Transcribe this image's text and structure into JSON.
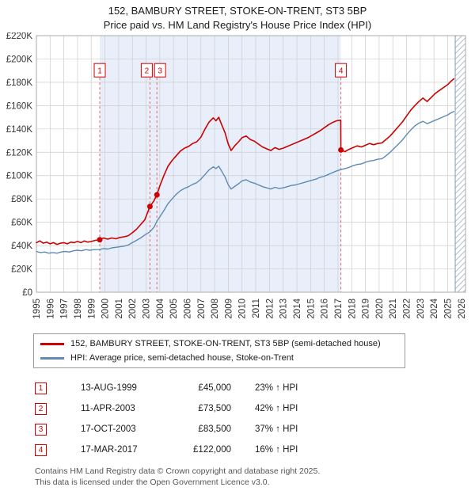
{
  "header": {
    "title": "152, BAMBURY STREET, STOKE-ON-TRENT, ST3 5BP",
    "subtitle": "Price paid vs. HM Land Registry's House Price Index (HPI)"
  },
  "chart_data": {
    "type": "line",
    "title": "152, BAMBURY STREET, STOKE-ON-TRENT, ST3 5BP — Price paid vs. HPI",
    "x_range": [
      1995,
      2026.3
    ],
    "y_range": [
      0,
      220000
    ],
    "x_ticks": [
      1995,
      1996,
      1997,
      1998,
      1999,
      2000,
      2001,
      2002,
      2003,
      2004,
      2005,
      2006,
      2007,
      2008,
      2009,
      2010,
      2011,
      2012,
      2013,
      2014,
      2015,
      2016,
      2017,
      2018,
      2019,
      2020,
      2021,
      2022,
      2023,
      2024,
      2025,
      2026
    ],
    "y_ticks": [
      0,
      20000,
      40000,
      60000,
      80000,
      100000,
      120000,
      140000,
      160000,
      180000,
      200000,
      220000
    ],
    "y_tick_labels": [
      "£0",
      "£20K",
      "£40K",
      "£60K",
      "£80K",
      "£100K",
      "£120K",
      "£140K",
      "£160K",
      "£180K",
      "£200K",
      "£220K"
    ],
    "grid": true,
    "legend_position": "below",
    "marker_y": 190000,
    "ownership_band": {
      "start": 1999.62,
      "end": 2017.21
    },
    "future_band": {
      "start": 2025.55,
      "end": 2026.3
    },
    "colors": {
      "accent": "#cc0000",
      "hpi": "#5e8ab4",
      "band": "#e9effa",
      "grid": "#cccccc",
      "dash": "#e06666",
      "hatch": "#aebdd0",
      "frame": "#aaaaaa",
      "axis_text": "#333333"
    },
    "sales": [
      {
        "label": "1",
        "x": 1999.62,
        "y": 45000,
        "label_dx": 0
      },
      {
        "label": "2",
        "x": 2003.28,
        "y": 73500,
        "label_dx": -4
      },
      {
        "label": "3",
        "x": 2003.79,
        "y": 83500,
        "label_dx": 4
      },
      {
        "label": "4",
        "x": 2017.21,
        "y": 122000,
        "label_dx": 0
      }
    ],
    "series": [
      {
        "name": "152, BAMBURY STREET, STOKE-ON-TRENT, ST3 5BP (semi-detached house)",
        "color": "#cc0000",
        "width": 1.6,
        "points": [
          [
            1995.0,
            42500
          ],
          [
            1995.25,
            44000
          ],
          [
            1995.5,
            42000
          ],
          [
            1995.75,
            43000
          ],
          [
            1996.0,
            41500
          ],
          [
            1996.25,
            42500
          ],
          [
            1996.5,
            41000
          ],
          [
            1996.75,
            42000
          ],
          [
            1997.0,
            42500
          ],
          [
            1997.25,
            41500
          ],
          [
            1997.5,
            43000
          ],
          [
            1997.75,
            42500
          ],
          [
            1998.0,
            43500
          ],
          [
            1998.25,
            42500
          ],
          [
            1998.5,
            44000
          ],
          [
            1998.75,
            43000
          ],
          [
            1999.0,
            43500
          ],
          [
            1999.3,
            44500
          ],
          [
            1999.62,
            45000
          ],
          [
            1999.9,
            46500
          ],
          [
            2000.2,
            45500
          ],
          [
            2000.5,
            46500
          ],
          [
            2000.8,
            45800
          ],
          [
            2001.1,
            47000
          ],
          [
            2001.4,
            47500
          ],
          [
            2001.7,
            48500
          ],
          [
            2002.0,
            51000
          ],
          [
            2002.3,
            54000
          ],
          [
            2002.6,
            58000
          ],
          [
            2002.9,
            62000
          ],
          [
            2003.28,
            73500
          ],
          [
            2003.55,
            78000
          ],
          [
            2003.79,
            83500
          ],
          [
            2004.0,
            91000
          ],
          [
            2004.3,
            100000
          ],
          [
            2004.6,
            108000
          ],
          [
            2004.9,
            113000
          ],
          [
            2005.2,
            117000
          ],
          [
            2005.5,
            121000
          ],
          [
            2005.8,
            123500
          ],
          [
            2006.1,
            125000
          ],
          [
            2006.4,
            127500
          ],
          [
            2006.7,
            129000
          ],
          [
            2007.0,
            133000
          ],
          [
            2007.3,
            140000
          ],
          [
            2007.6,
            146000
          ],
          [
            2007.9,
            149500
          ],
          [
            2008.1,
            147000
          ],
          [
            2008.3,
            150000
          ],
          [
            2008.5,
            144000
          ],
          [
            2008.75,
            137000
          ],
          [
            2009.0,
            127000
          ],
          [
            2009.2,
            121500
          ],
          [
            2009.5,
            126000
          ],
          [
            2009.75,
            129000
          ],
          [
            2010.0,
            132500
          ],
          [
            2010.3,
            134000
          ],
          [
            2010.6,
            131000
          ],
          [
            2010.9,
            129500
          ],
          [
            2011.2,
            127000
          ],
          [
            2011.5,
            124500
          ],
          [
            2011.8,
            123000
          ],
          [
            2012.1,
            121500
          ],
          [
            2012.4,
            124000
          ],
          [
            2012.7,
            122500
          ],
          [
            2013.0,
            123500
          ],
          [
            2013.3,
            125000
          ],
          [
            2013.6,
            126500
          ],
          [
            2013.9,
            128000
          ],
          [
            2014.2,
            129500
          ],
          [
            2014.5,
            131000
          ],
          [
            2014.8,
            132500
          ],
          [
            2015.1,
            134500
          ],
          [
            2015.4,
            136500
          ],
          [
            2015.7,
            138500
          ],
          [
            2016.0,
            141000
          ],
          [
            2016.3,
            143500
          ],
          [
            2016.6,
            145500
          ],
          [
            2016.9,
            147000
          ],
          [
            2017.2,
            147500
          ],
          [
            2017.21,
            122000
          ],
          [
            2017.5,
            120500
          ],
          [
            2017.8,
            122500
          ],
          [
            2018.1,
            124000
          ],
          [
            2018.4,
            125500
          ],
          [
            2018.7,
            124500
          ],
          [
            2019.0,
            126000
          ],
          [
            2019.3,
            127500
          ],
          [
            2019.6,
            126500
          ],
          [
            2019.9,
            127500
          ],
          [
            2020.2,
            128000
          ],
          [
            2020.5,
            131000
          ],
          [
            2020.8,
            134000
          ],
          [
            2021.1,
            138000
          ],
          [
            2021.4,
            142000
          ],
          [
            2021.7,
            146000
          ],
          [
            2022.0,
            151000
          ],
          [
            2022.3,
            156000
          ],
          [
            2022.6,
            160000
          ],
          [
            2022.9,
            163500
          ],
          [
            2023.2,
            166500
          ],
          [
            2023.5,
            163500
          ],
          [
            2023.8,
            167000
          ],
          [
            2024.1,
            170500
          ],
          [
            2024.4,
            173000
          ],
          [
            2024.7,
            175500
          ],
          [
            2025.0,
            178000
          ],
          [
            2025.2,
            180500
          ],
          [
            2025.45,
            183000
          ]
        ]
      },
      {
        "name": "HPI: Average price, semi-detached house, Stoke-on-Trent",
        "color": "#5e8ab4",
        "width": 1.4,
        "points": [
          [
            1995.0,
            35000
          ],
          [
            1995.3,
            34000
          ],
          [
            1995.6,
            34500
          ],
          [
            1995.9,
            33500
          ],
          [
            1996.2,
            34000
          ],
          [
            1996.5,
            33500
          ],
          [
            1996.8,
            34500
          ],
          [
            1997.1,
            35000
          ],
          [
            1997.4,
            34500
          ],
          [
            1997.7,
            35500
          ],
          [
            1998.0,
            36000
          ],
          [
            1998.3,
            35500
          ],
          [
            1998.6,
            36500
          ],
          [
            1998.9,
            36000
          ],
          [
            1999.2,
            36500
          ],
          [
            1999.62,
            36600
          ],
          [
            1999.9,
            37500
          ],
          [
            2000.2,
            37000
          ],
          [
            2000.5,
            38000
          ],
          [
            2000.8,
            38500
          ],
          [
            2001.1,
            39000
          ],
          [
            2001.4,
            39500
          ],
          [
            2001.7,
            40500
          ],
          [
            2002.0,
            42500
          ],
          [
            2002.3,
            44500
          ],
          [
            2002.6,
            46500
          ],
          [
            2002.9,
            49000
          ],
          [
            2003.28,
            51800
          ],
          [
            2003.6,
            56000
          ],
          [
            2003.79,
            61000
          ],
          [
            2004.0,
            64500
          ],
          [
            2004.3,
            70000
          ],
          [
            2004.6,
            76000
          ],
          [
            2004.9,
            80000
          ],
          [
            2005.2,
            84000
          ],
          [
            2005.5,
            87000
          ],
          [
            2005.8,
            89000
          ],
          [
            2006.1,
            90500
          ],
          [
            2006.4,
            92500
          ],
          [
            2006.7,
            94000
          ],
          [
            2007.0,
            97000
          ],
          [
            2007.3,
            101000
          ],
          [
            2007.6,
            105000
          ],
          [
            2007.9,
            107500
          ],
          [
            2008.1,
            106000
          ],
          [
            2008.3,
            108000
          ],
          [
            2008.5,
            104000
          ],
          [
            2008.75,
            99000
          ],
          [
            2009.0,
            92000
          ],
          [
            2009.2,
            88500
          ],
          [
            2009.5,
            91000
          ],
          [
            2009.75,
            93000
          ],
          [
            2010.0,
            95500
          ],
          [
            2010.3,
            96500
          ],
          [
            2010.6,
            94500
          ],
          [
            2010.9,
            93500
          ],
          [
            2011.2,
            92000
          ],
          [
            2011.5,
            90500
          ],
          [
            2011.8,
            89500
          ],
          [
            2012.1,
            88500
          ],
          [
            2012.4,
            90000
          ],
          [
            2012.7,
            89000
          ],
          [
            2013.0,
            89500
          ],
          [
            2013.3,
            90500
          ],
          [
            2013.6,
            91500
          ],
          [
            2013.9,
            92000
          ],
          [
            2014.2,
            93000
          ],
          [
            2014.5,
            94000
          ],
          [
            2014.8,
            95000
          ],
          [
            2015.1,
            96000
          ],
          [
            2015.4,
            97000
          ],
          [
            2015.7,
            98500
          ],
          [
            2016.0,
            99500
          ],
          [
            2016.3,
            101000
          ],
          [
            2016.6,
            102500
          ],
          [
            2016.9,
            104000
          ],
          [
            2017.21,
            105200
          ],
          [
            2017.5,
            106000
          ],
          [
            2017.8,
            107000
          ],
          [
            2018.1,
            108500
          ],
          [
            2018.4,
            109500
          ],
          [
            2018.7,
            110000
          ],
          [
            2019.0,
            111500
          ],
          [
            2019.3,
            112500
          ],
          [
            2019.6,
            113000
          ],
          [
            2019.9,
            114000
          ],
          [
            2020.2,
            114500
          ],
          [
            2020.5,
            117000
          ],
          [
            2020.8,
            120000
          ],
          [
            2021.1,
            123500
          ],
          [
            2021.4,
            127000
          ],
          [
            2021.7,
            130500
          ],
          [
            2022.0,
            135000
          ],
          [
            2022.3,
            139000
          ],
          [
            2022.6,
            142500
          ],
          [
            2022.9,
            145000
          ],
          [
            2023.2,
            146500
          ],
          [
            2023.5,
            144500
          ],
          [
            2023.8,
            146000
          ],
          [
            2024.1,
            147500
          ],
          [
            2024.4,
            149000
          ],
          [
            2024.7,
            150500
          ],
          [
            2025.0,
            152000
          ],
          [
            2025.2,
            153500
          ],
          [
            2025.45,
            155000
          ]
        ]
      }
    ]
  },
  "legend": {
    "items": [
      {
        "label": "152, BAMBURY STREET, STOKE-ON-TRENT, ST3 5BP (semi-detached house)",
        "color": "#cc0000"
      },
      {
        "label": "HPI: Average price, semi-detached house, Stoke-on-Trent",
        "color": "#5e8ab4"
      }
    ]
  },
  "transactions": [
    {
      "num": "1",
      "date": "13-AUG-1999",
      "price": "£45,000",
      "hpi": "23% ↑ HPI"
    },
    {
      "num": "2",
      "date": "11-APR-2003",
      "price": "£73,500",
      "hpi": "42% ↑ HPI"
    },
    {
      "num": "3",
      "date": "17-OCT-2003",
      "price": "£83,500",
      "hpi": "37% ↑ HPI"
    },
    {
      "num": "4",
      "date": "17-MAR-2017",
      "price": "£122,000",
      "hpi": "16% ↑ HPI"
    }
  ],
  "footer": {
    "line1": "Contains HM Land Registry data © Crown copyright and database right 2025.",
    "line2": "This data is licensed under the Open Government Licence v3.0."
  }
}
